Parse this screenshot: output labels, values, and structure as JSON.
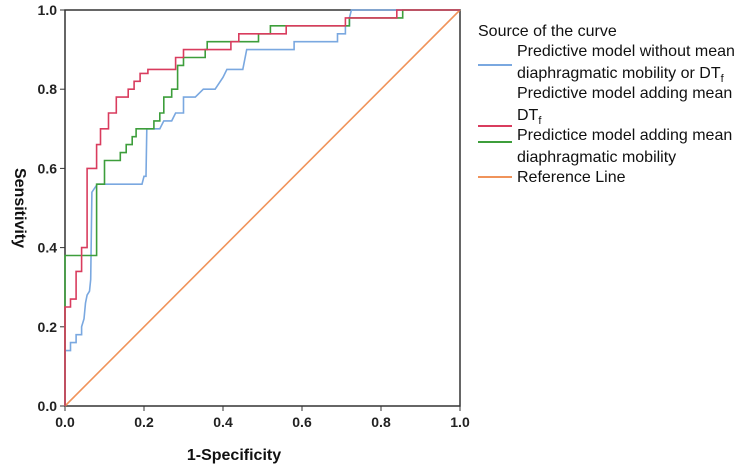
{
  "chart_data": {
    "type": "line",
    "title": "",
    "xlabel": "1-Specificity",
    "ylabel": "Sensitivity",
    "xlim": [
      0,
      1
    ],
    "ylim": [
      0,
      1
    ],
    "xticks": [
      "0.0",
      "0.2",
      "0.4",
      "0.6",
      "0.8",
      "1.0"
    ],
    "yticks": [
      "0.0",
      "0.2",
      "0.4",
      "0.6",
      "0.8",
      "1.0"
    ],
    "legend": {
      "title": "Source of the curve",
      "placement": "right"
    },
    "series": [
      {
        "name": "Predictive model without mean diaphragmatic mobility or DTf",
        "label_lines": [
          "Predictive model without mean",
          "diaphragmatic mobility or DT",
          "f"
        ],
        "color": "#7aa8e0",
        "points": [
          [
            0,
            0
          ],
          [
            0,
            0.14
          ],
          [
            0.014,
            0.14
          ],
          [
            0.014,
            0.16
          ],
          [
            0.028,
            0.16
          ],
          [
            0.028,
            0.18
          ],
          [
            0.042,
            0.18
          ],
          [
            0.042,
            0.2
          ],
          [
            0.048,
            0.22
          ],
          [
            0.052,
            0.26
          ],
          [
            0.056,
            0.28
          ],
          [
            0.062,
            0.29
          ],
          [
            0.065,
            0.32
          ],
          [
            0.068,
            0.54
          ],
          [
            0.075,
            0.55
          ],
          [
            0.082,
            0.56
          ],
          [
            0.195,
            0.56
          ],
          [
            0.2,
            0.58
          ],
          [
            0.205,
            0.58
          ],
          [
            0.207,
            0.7
          ],
          [
            0.24,
            0.7
          ],
          [
            0.25,
            0.72
          ],
          [
            0.27,
            0.72
          ],
          [
            0.28,
            0.74
          ],
          [
            0.3,
            0.74
          ],
          [
            0.3,
            0.78
          ],
          [
            0.33,
            0.78
          ],
          [
            0.35,
            0.8
          ],
          [
            0.38,
            0.8
          ],
          [
            0.4,
            0.83
          ],
          [
            0.41,
            0.85
          ],
          [
            0.45,
            0.85
          ],
          [
            0.46,
            0.9
          ],
          [
            0.58,
            0.9
          ],
          [
            0.58,
            0.92
          ],
          [
            0.69,
            0.92
          ],
          [
            0.69,
            0.94
          ],
          [
            0.71,
            0.94
          ],
          [
            0.71,
            0.96
          ],
          [
            0.72,
            0.96
          ],
          [
            0.72,
            0.98
          ],
          [
            0.725,
            1.0
          ],
          [
            1.0,
            1.0
          ]
        ]
      },
      {
        "name": "Predictive model adding mean DTf",
        "label_lines": [
          "Predictive model adding mean",
          "DT",
          "f"
        ],
        "color": "#d93c5e",
        "points": [
          [
            0,
            0
          ],
          [
            0,
            0.25
          ],
          [
            0.014,
            0.25
          ],
          [
            0.014,
            0.27
          ],
          [
            0.028,
            0.27
          ],
          [
            0.028,
            0.34
          ],
          [
            0.042,
            0.34
          ],
          [
            0.042,
            0.4
          ],
          [
            0.056,
            0.4
          ],
          [
            0.056,
            0.6
          ],
          [
            0.08,
            0.6
          ],
          [
            0.08,
            0.66
          ],
          [
            0.09,
            0.66
          ],
          [
            0.09,
            0.7
          ],
          [
            0.11,
            0.7
          ],
          [
            0.11,
            0.74
          ],
          [
            0.13,
            0.74
          ],
          [
            0.13,
            0.78
          ],
          [
            0.16,
            0.78
          ],
          [
            0.16,
            0.8
          ],
          [
            0.175,
            0.8
          ],
          [
            0.175,
            0.82
          ],
          [
            0.19,
            0.82
          ],
          [
            0.19,
            0.84
          ],
          [
            0.21,
            0.84
          ],
          [
            0.21,
            0.85
          ],
          [
            0.28,
            0.85
          ],
          [
            0.28,
            0.88
          ],
          [
            0.3,
            0.88
          ],
          [
            0.3,
            0.9
          ],
          [
            0.42,
            0.9
          ],
          [
            0.42,
            0.92
          ],
          [
            0.44,
            0.92
          ],
          [
            0.44,
            0.94
          ],
          [
            0.56,
            0.94
          ],
          [
            0.56,
            0.96
          ],
          [
            0.71,
            0.96
          ],
          [
            0.71,
            0.98
          ],
          [
            0.84,
            0.98
          ],
          [
            0.84,
            1.0
          ],
          [
            1.0,
            1.0
          ]
        ]
      },
      {
        "name": "Predictice model adding mean diaphragmatic mobility",
        "label_lines": [
          "Predictice model adding mean",
          "diaphragmatic mobility"
        ],
        "color": "#3d9e3b",
        "points": [
          [
            0,
            0
          ],
          [
            0,
            0.38
          ],
          [
            0.08,
            0.38
          ],
          [
            0.08,
            0.56
          ],
          [
            0.1,
            0.56
          ],
          [
            0.1,
            0.62
          ],
          [
            0.14,
            0.62
          ],
          [
            0.14,
            0.64
          ],
          [
            0.155,
            0.64
          ],
          [
            0.155,
            0.66
          ],
          [
            0.17,
            0.66
          ],
          [
            0.17,
            0.68
          ],
          [
            0.18,
            0.68
          ],
          [
            0.18,
            0.7
          ],
          [
            0.225,
            0.7
          ],
          [
            0.225,
            0.72
          ],
          [
            0.24,
            0.72
          ],
          [
            0.24,
            0.74
          ],
          [
            0.25,
            0.74
          ],
          [
            0.25,
            0.78
          ],
          [
            0.27,
            0.78
          ],
          [
            0.27,
            0.8
          ],
          [
            0.285,
            0.8
          ],
          [
            0.285,
            0.86
          ],
          [
            0.3,
            0.86
          ],
          [
            0.3,
            0.88
          ],
          [
            0.355,
            0.88
          ],
          [
            0.355,
            0.9
          ],
          [
            0.36,
            0.9
          ],
          [
            0.36,
            0.92
          ],
          [
            0.49,
            0.92
          ],
          [
            0.49,
            0.94
          ],
          [
            0.52,
            0.94
          ],
          [
            0.52,
            0.96
          ],
          [
            0.72,
            0.96
          ],
          [
            0.72,
            0.98
          ],
          [
            0.855,
            0.98
          ],
          [
            0.855,
            1.0
          ],
          [
            1.0,
            1.0
          ]
        ]
      },
      {
        "name": "Reference Line",
        "label_lines": [
          "Reference Line"
        ],
        "color": "#f0935a",
        "points": [
          [
            0,
            0
          ],
          [
            1,
            1
          ]
        ]
      }
    ]
  }
}
